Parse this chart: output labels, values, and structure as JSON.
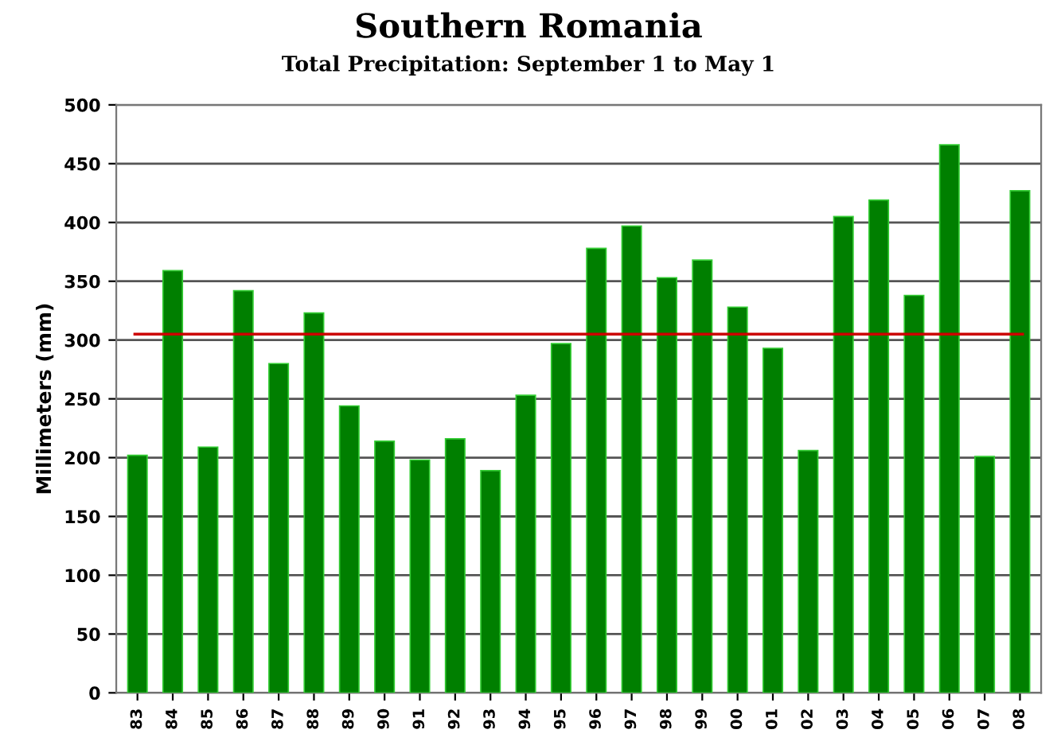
{
  "chart_data": {
    "type": "bar",
    "title": "Southern Romania",
    "subtitle": "Total Precipitation: September 1 to May 1",
    "ylabel": "Millimeters (mm)",
    "categories": [
      "83",
      "84",
      "85",
      "86",
      "87",
      "88",
      "89",
      "90",
      "91",
      "92",
      "93",
      "94",
      "95",
      "96",
      "97",
      "98",
      "99",
      "00",
      "01",
      "02",
      "03",
      "04",
      "05",
      "06",
      "07",
      "08"
    ],
    "values": [
      202,
      359,
      209,
      342,
      280,
      323,
      244,
      214,
      198,
      216,
      189,
      253,
      297,
      378,
      397,
      353,
      368,
      328,
      293,
      206,
      405,
      419,
      338,
      466,
      201,
      427
    ],
    "color": "#007f00",
    "ylim": [
      0,
      500
    ],
    "yticks": [
      0,
      50,
      100,
      150,
      200,
      250,
      300,
      350,
      400,
      450,
      500
    ],
    "grid": "y",
    "ref_lines": [
      {
        "axis": "y",
        "value": 305,
        "color": "#cc0000"
      }
    ]
  }
}
